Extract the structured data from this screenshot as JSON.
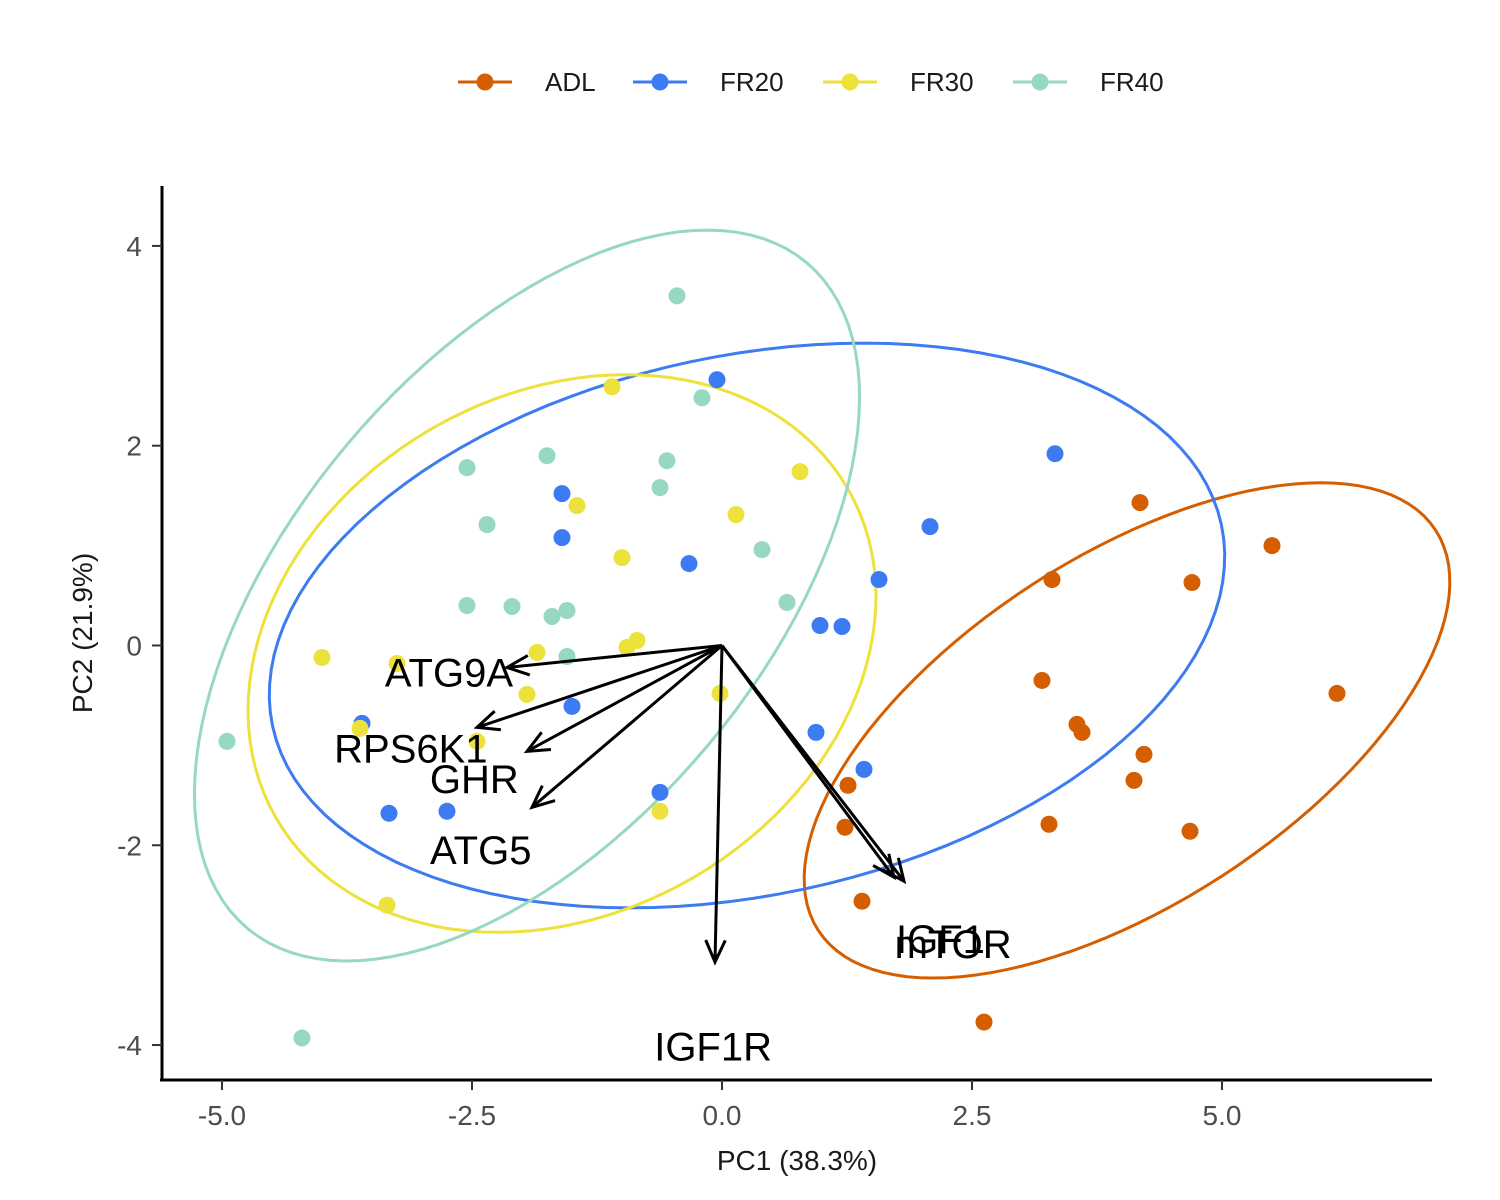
{
  "chart_data": {
    "type": "scatter",
    "subtype": "pca-biplot",
    "xlabel": "PC1 (38.3%)",
    "ylabel": "PC2 (21.9%)",
    "xlim": [
      -5.6,
      7.1
    ],
    "ylim": [
      -4.35,
      4.6
    ],
    "x_ticks": [
      -5.0,
      -2.5,
      0.0,
      2.5,
      5.0
    ],
    "x_tick_labels": [
      "-5.0",
      "-2.5",
      "0.0",
      "2.5",
      "5.0"
    ],
    "y_ticks": [
      -4,
      -2,
      0,
      2,
      4
    ],
    "y_tick_labels": [
      "-4",
      "-2",
      "0",
      "2",
      "4"
    ],
    "grid": false,
    "legend_position": "top",
    "series": [
      {
        "name": "ADL",
        "color": "#D55E00",
        "points": [
          [
            4.18,
            1.43
          ],
          [
            5.5,
            1.0
          ],
          [
            3.3,
            0.66
          ],
          [
            4.7,
            0.63
          ],
          [
            6.15,
            -0.48
          ],
          [
            3.2,
            -0.35
          ],
          [
            3.55,
            -0.79
          ],
          [
            3.6,
            -0.87
          ],
          [
            4.22,
            -1.09
          ],
          [
            4.12,
            -1.35
          ],
          [
            3.27,
            -1.79
          ],
          [
            4.68,
            -1.86
          ],
          [
            1.26,
            -1.4
          ],
          [
            1.23,
            -1.82
          ],
          [
            1.4,
            -2.56
          ],
          [
            2.62,
            -3.77
          ]
        ],
        "ellipse": {
          "center": [
            4.05,
            -0.85
          ],
          "semi_major": 3.68,
          "semi_minor": 1.74,
          "angle_deg": 33
        }
      },
      {
        "name": "FR20",
        "color": "#3D7BF2",
        "points": [
          [
            -0.05,
            2.66
          ],
          [
            3.33,
            1.92
          ],
          [
            -1.6,
            1.52
          ],
          [
            2.08,
            1.19
          ],
          [
            -1.6,
            1.08
          ],
          [
            -0.33,
            0.82
          ],
          [
            1.57,
            0.66
          ],
          [
            0.98,
            0.2
          ],
          [
            1.2,
            0.19
          ],
          [
            -3.6,
            -0.78
          ],
          [
            -1.5,
            -0.61
          ],
          [
            0.94,
            -0.87
          ],
          [
            1.42,
            -1.24
          ],
          [
            -0.62,
            -1.47
          ],
          [
            -3.33,
            -1.68
          ],
          [
            -2.75,
            -1.66
          ]
        ],
        "ellipse": {
          "center": [
            0.25,
            0.2
          ],
          "semi_major": 4.85,
          "semi_minor": 2.7,
          "angle_deg": 12
        }
      },
      {
        "name": "FR30",
        "color": "#EDE13B",
        "points": [
          [
            -1.1,
            2.59
          ],
          [
            0.78,
            1.74
          ],
          [
            -1.45,
            1.4
          ],
          [
            0.14,
            1.31
          ],
          [
            -1.0,
            0.88
          ],
          [
            -4.0,
            -0.12
          ],
          [
            -3.25,
            -0.18
          ],
          [
            -1.85,
            -0.07
          ],
          [
            -0.85,
            0.05
          ],
          [
            -0.95,
            -0.02
          ],
          [
            -1.95,
            -0.49
          ],
          [
            -2.45,
            -0.96
          ],
          [
            -3.62,
            -0.83
          ],
          [
            -0.02,
            -0.48
          ],
          [
            -0.62,
            -1.66
          ],
          [
            -3.35,
            -2.6
          ]
        ],
        "ellipse": {
          "center": [
            -1.6,
            -0.08
          ],
          "semi_major": 3.3,
          "semi_minor": 2.6,
          "angle_deg": 30
        }
      },
      {
        "name": "FR40",
        "color": "#96D8C0",
        "points": [
          [
            -0.45,
            3.5
          ],
          [
            -0.2,
            2.48
          ],
          [
            -2.55,
            1.78
          ],
          [
            -1.75,
            1.9
          ],
          [
            -0.55,
            1.85
          ],
          [
            -0.62,
            1.58
          ],
          [
            -2.35,
            1.21
          ],
          [
            0.4,
            0.96
          ],
          [
            -2.55,
            0.4
          ],
          [
            -2.1,
            0.39
          ],
          [
            -1.55,
            0.35
          ],
          [
            -1.7,
            0.29
          ],
          [
            0.65,
            0.43
          ],
          [
            -1.55,
            -0.11
          ],
          [
            -4.95,
            -0.96
          ],
          [
            -4.2,
            -3.93
          ]
        ],
        "ellipse": {
          "center": [
            -1.95,
            0.5
          ],
          "semi_major": 4.35,
          "semi_minor": 2.35,
          "angle_deg": 50
        }
      }
    ],
    "loadings": [
      {
        "name": "ATG9A",
        "x": -2.15,
        "y": -0.22
      },
      {
        "name": "RPS6K1",
        "x": -2.45,
        "y": -0.82
      },
      {
        "name": "GHR",
        "x": -1.95,
        "y": -1.06
      },
      {
        "name": "ATG5",
        "x": -1.9,
        "y": -1.62
      },
      {
        "name": "IGF1",
        "x": 1.72,
        "y": -2.32
      },
      {
        "name": "mTOR",
        "x": 1.82,
        "y": -2.36
      },
      {
        "name": "IGF1R",
        "x": -0.07,
        "y": -3.17
      }
    ]
  }
}
